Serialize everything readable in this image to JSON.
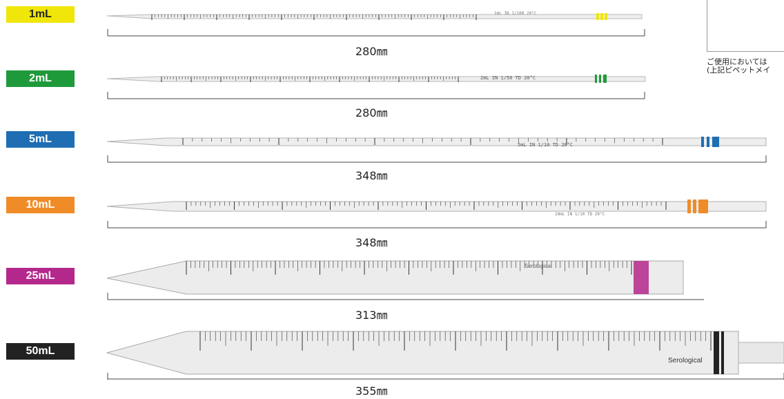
{
  "colors": {
    "p1": "#f0e60a",
    "p2": "#1f9a3b",
    "p5": "#1f6eb4",
    "p10": "#f08c28",
    "p25": "#b4288c",
    "p50": "#222222"
  },
  "pipettes": [
    {
      "label": "1mL",
      "length": "280㎜",
      "spec": "1mL IN 1/100 20°C"
    },
    {
      "label": "2mL",
      "length": "280㎜",
      "spec": "2mL IN 1/50 TD 20°C"
    },
    {
      "label": "5mL",
      "length": "348㎜",
      "spec": "5mL IN 1/10 TD 20°C"
    },
    {
      "label": "10mL",
      "length": "348㎜",
      "spec": "10mL IN 1/10 TD 20°C"
    },
    {
      "label": "25mL",
      "length": "313㎜",
      "spec": "Serological"
    },
    {
      "label": "50mL",
      "length": "355㎜",
      "spec": "Serological"
    }
  ],
  "note": {
    "line1": "ご使用においては",
    "line2": "(上記ピペットメイ"
  }
}
